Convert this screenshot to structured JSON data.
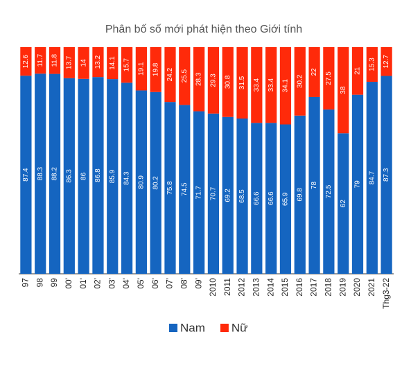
{
  "chart_data": {
    "type": "bar",
    "stacked": true,
    "title": "Phân bố số mới phát hiện theo Giới tính",
    "categories": [
      "97",
      "98",
      "99",
      "00'",
      "01'",
      "02'",
      "03'",
      "04'",
      "05'",
      "06'",
      "07'",
      "08'",
      "09'",
      "2010",
      "2011",
      "2012",
      "2013",
      "2014",
      "2015",
      "2016",
      "2017",
      "2018",
      "2019",
      "2020",
      "2021",
      "Thg3-22"
    ],
    "series": [
      {
        "name": "Nam",
        "color": "#1565c0",
        "values": [
          87.4,
          88.3,
          88.2,
          86.3,
          86,
          86.8,
          85.9,
          84.3,
          80.9,
          80.2,
          75.8,
          74.5,
          71.7,
          70.7,
          69.2,
          68.5,
          66.6,
          66.6,
          65.9,
          69.8,
          78,
          72.5,
          62,
          79,
          84.7,
          87.3
        ]
      },
      {
        "name": "Nữ",
        "color": "#ff2a0a",
        "values": [
          12.6,
          11.7,
          11.8,
          13.7,
          14,
          13.2,
          14.1,
          15.7,
          19.1,
          19.8,
          24.2,
          25.5,
          28.3,
          29.3,
          30.8,
          31.5,
          33.4,
          33.4,
          34.1,
          30.2,
          22,
          27.5,
          38,
          21,
          15.3,
          12.7
        ]
      }
    ],
    "ylim": [
      0,
      100
    ],
    "legend": "bottom"
  }
}
